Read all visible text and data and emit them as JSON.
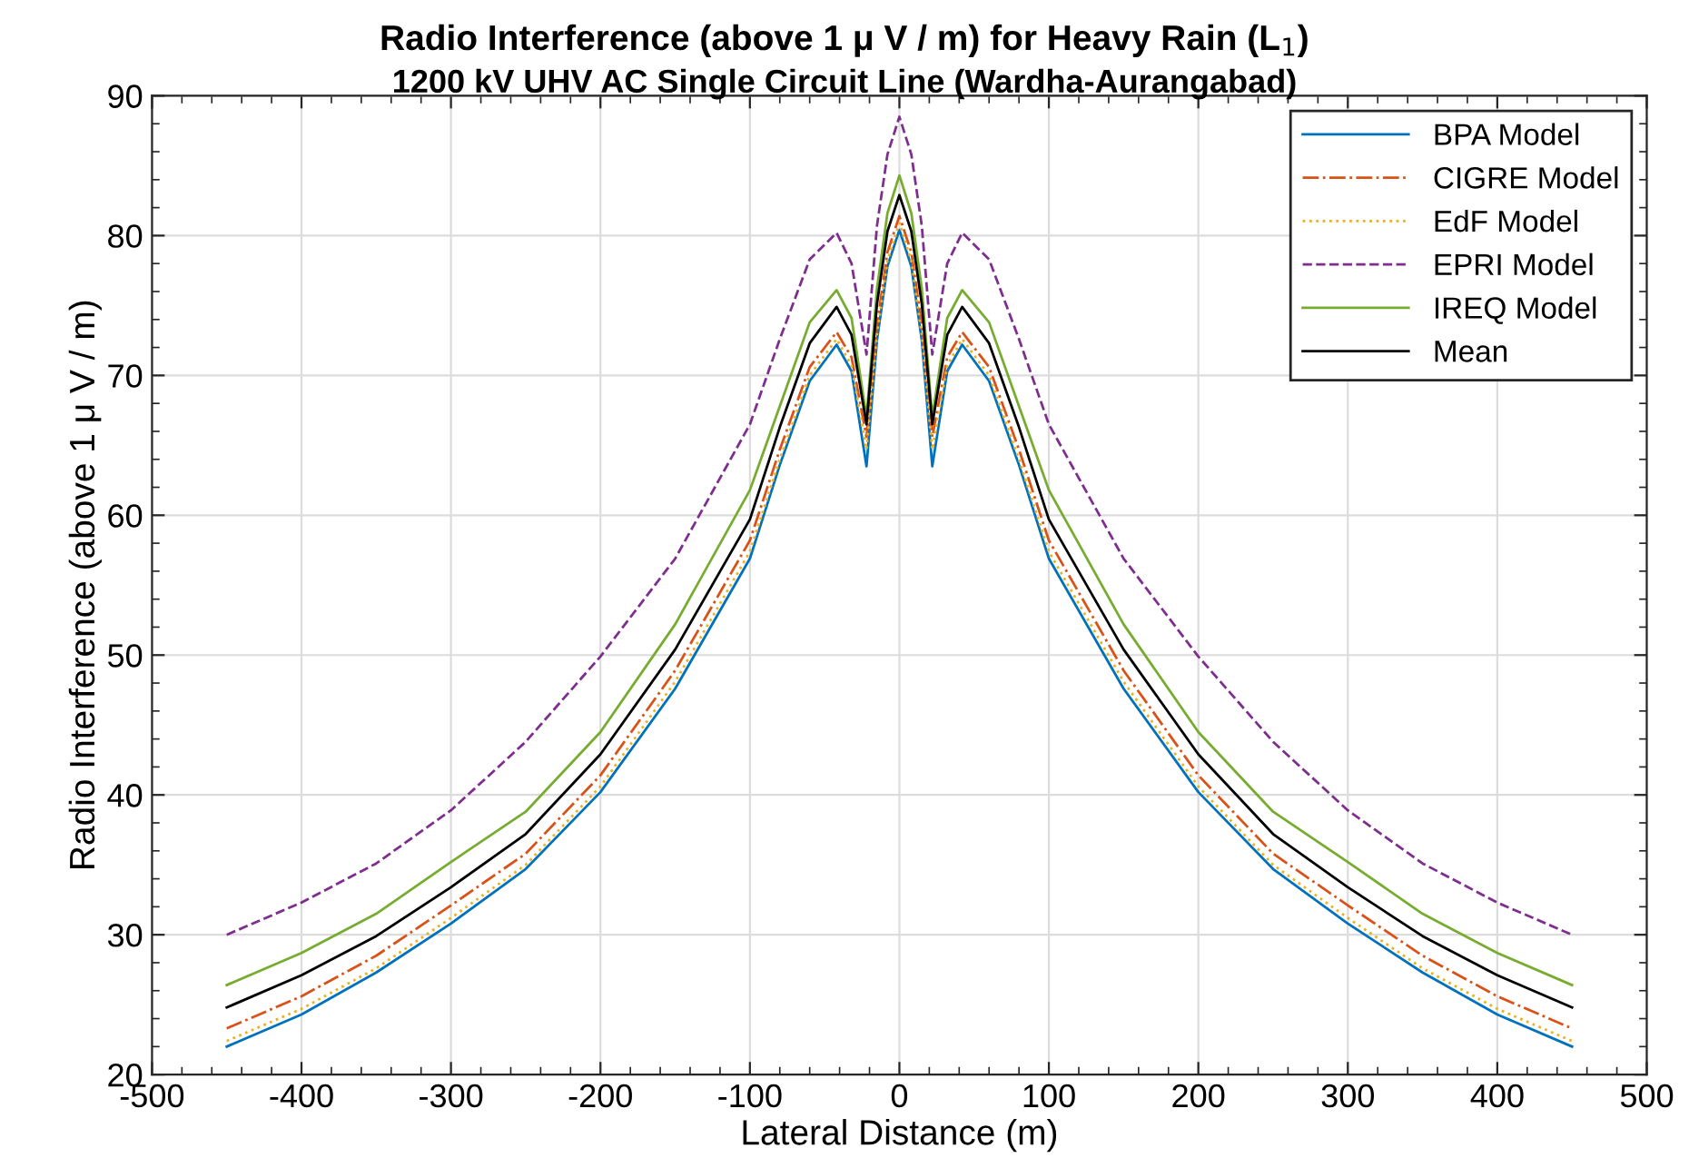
{
  "chart_data": {
    "type": "line",
    "title": "Radio Interference (above 1 μ V / m) for Heavy Rain (L$_{1}$)",
    "subtitle": "1200 kV UHV AC Single Circuit Line (Wardha-Aurangabad)",
    "xlabel": "Lateral Distance (m)",
    "ylabel": "Radio Interference (above 1 μ V / m)",
    "x": [
      -450,
      -400,
      -350,
      -300,
      -250,
      -200,
      -150,
      -100,
      -80,
      -60,
      -42,
      -32,
      -22,
      -15,
      -8,
      0,
      8,
      15,
      22,
      32,
      42,
      60,
      80,
      100,
      150,
      200,
      250,
      300,
      350,
      400,
      450
    ],
    "series": [
      {
        "name": "BPA Model",
        "color": "#0072bd",
        "line_style": "solid",
        "values": [
          22.0,
          24.3,
          27.3,
          30.8,
          34.7,
          40.2,
          47.6,
          56.9,
          63.6,
          69.6,
          72.2,
          70.3,
          63.5,
          72.5,
          77.8,
          80.4,
          77.8,
          72.5,
          63.5,
          70.3,
          72.2,
          69.6,
          63.6,
          56.9,
          47.6,
          40.2,
          34.7,
          30.8,
          27.3,
          24.3,
          22.0
        ]
      },
      {
        "name": "CIGRE Model",
        "color": "#d95319",
        "line_style": "dashdot",
        "values": [
          23.3,
          25.6,
          28.5,
          32.1,
          35.8,
          41.4,
          48.9,
          58.2,
          64.7,
          70.6,
          73.1,
          71.3,
          65.6,
          73.6,
          78.8,
          81.4,
          78.8,
          73.6,
          65.6,
          71.3,
          73.1,
          70.6,
          64.7,
          58.2,
          48.9,
          41.4,
          35.8,
          32.1,
          28.5,
          25.6,
          23.3
        ]
      },
      {
        "name": "EdF Model",
        "color": "#edb120",
        "line_style": "dotted",
        "values": [
          22.4,
          24.7,
          27.6,
          31.2,
          35.0,
          40.6,
          48.1,
          57.4,
          64.0,
          70.0,
          72.6,
          70.7,
          64.7,
          72.9,
          78.2,
          80.9,
          78.2,
          72.9,
          64.7,
          70.7,
          72.6,
          70.0,
          64.0,
          57.4,
          48.1,
          40.6,
          35.0,
          31.2,
          27.6,
          24.7,
          22.4
        ]
      },
      {
        "name": "EPRI Model",
        "color": "#7e2f8e",
        "line_style": "dashed",
        "values": [
          30.0,
          32.3,
          35.1,
          38.9,
          43.8,
          49.9,
          56.9,
          66.5,
          72.6,
          78.3,
          80.2,
          78.0,
          71.5,
          80.7,
          85.8,
          88.5,
          85.8,
          80.7,
          71.5,
          78.0,
          80.2,
          78.3,
          72.6,
          66.5,
          56.9,
          49.9,
          43.8,
          38.9,
          35.1,
          32.3,
          30.0
        ]
      },
      {
        "name": "IREQ Model",
        "color": "#77ac30",
        "line_style": "solid",
        "values": [
          26.4,
          28.7,
          31.5,
          35.2,
          38.8,
          44.5,
          52.2,
          61.8,
          67.8,
          73.8,
          76.1,
          74.1,
          67.0,
          76.2,
          81.6,
          84.3,
          81.6,
          76.2,
          67.0,
          74.1,
          76.1,
          73.8,
          67.8,
          61.8,
          52.2,
          44.5,
          38.8,
          35.2,
          31.5,
          28.7,
          26.4
        ]
      },
      {
        "name": "Mean",
        "color": "#000000",
        "line_style": "solid",
        "values": [
          24.8,
          27.1,
          29.9,
          33.4,
          37.2,
          42.9,
          50.4,
          59.7,
          66.3,
          72.3,
          74.9,
          72.9,
          66.5,
          75.1,
          80.3,
          82.9,
          80.3,
          75.1,
          66.5,
          72.9,
          74.9,
          72.3,
          66.3,
          59.7,
          50.4,
          42.9,
          37.2,
          33.4,
          29.9,
          27.1,
          24.8
        ]
      }
    ],
    "xlim": [
      -500,
      500
    ],
    "xticks": [
      -500,
      -400,
      -300,
      -200,
      -100,
      0,
      100,
      200,
      300,
      400,
      500
    ],
    "ylim": [
      20,
      90
    ],
    "yticks": [
      20,
      30,
      40,
      50,
      60,
      70,
      80,
      90
    ],
    "grid": true,
    "legend": "top right",
    "marker": "none"
  }
}
